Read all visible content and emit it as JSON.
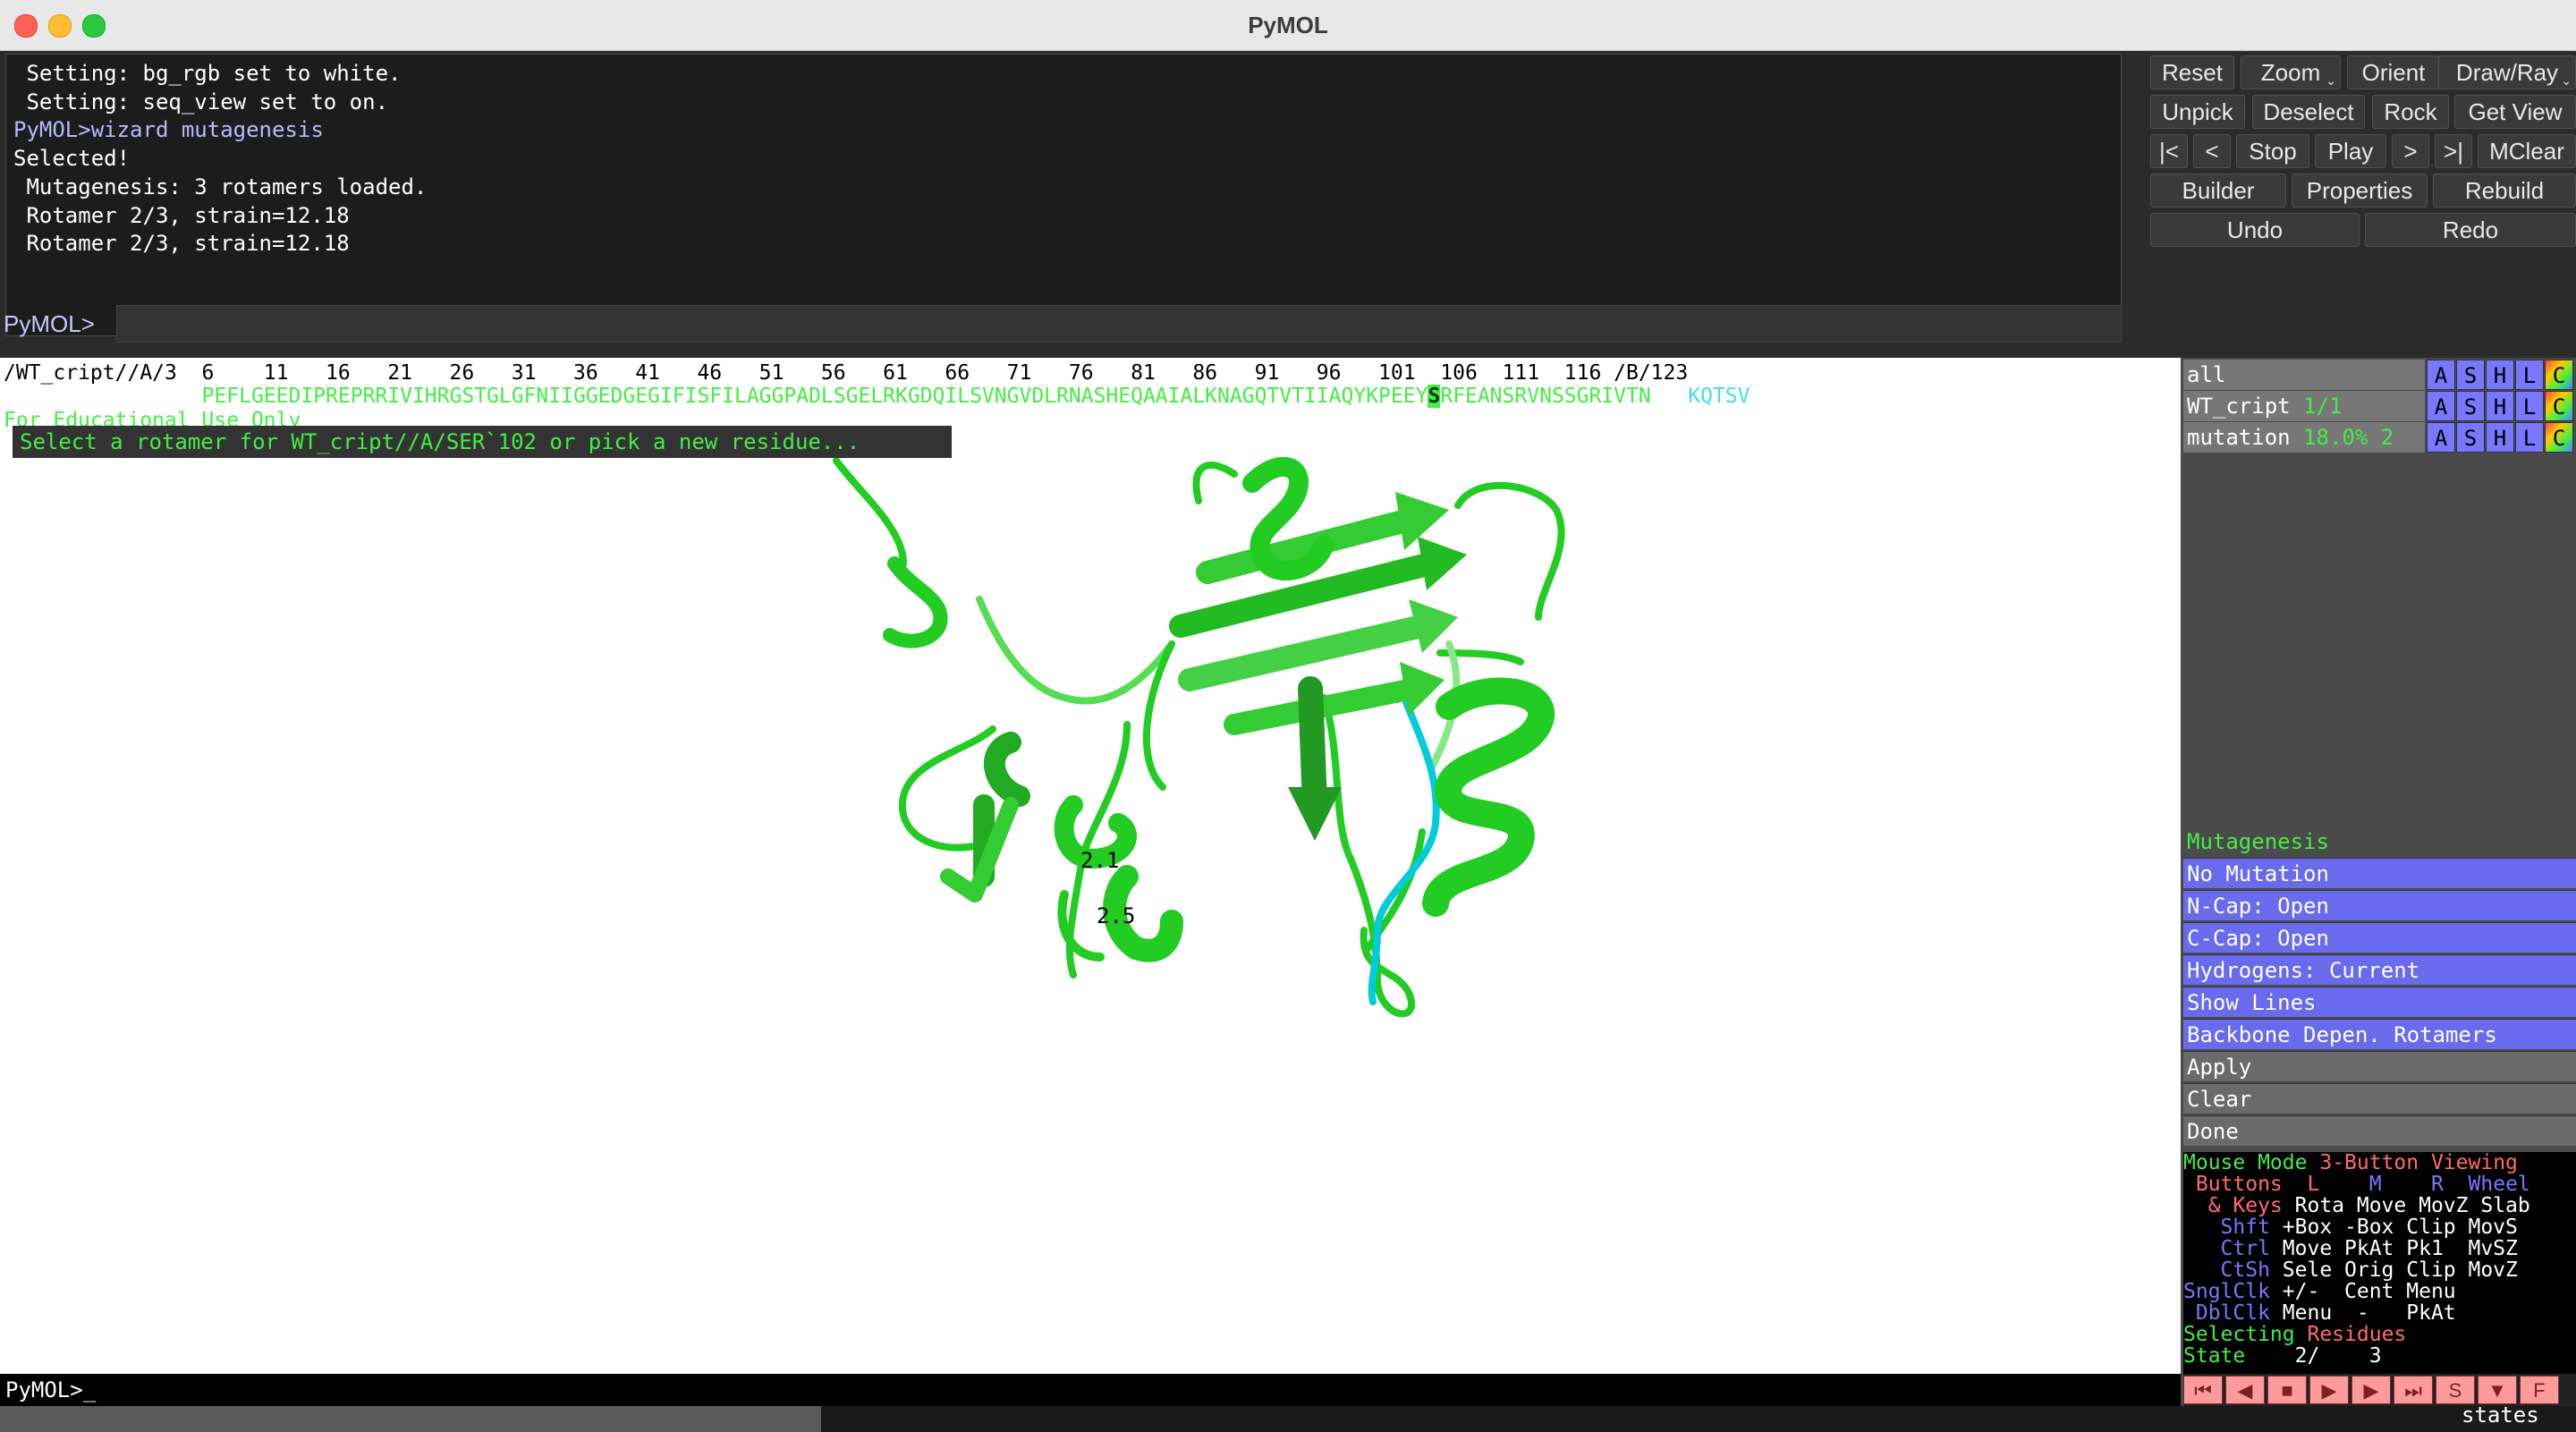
{
  "window": {
    "title": "PyMOL"
  },
  "console": {
    "lines": [
      " Setting: bg_rgb set to white.",
      " Setting: seq_view set to on.",
      "PyMOL>wizard mutagenesis",
      "Selected!",
      " Mutagenesis: 3 rotamers loaded.",
      " Rotamer 2/3, strain=12.18",
      " Rotamer 2/3, strain=12.18"
    ],
    "prompt_label": "PyMOL>"
  },
  "buttons": {
    "reset": "Reset",
    "zoom": "Zoom",
    "orient": "Orient",
    "draw_ray": "Draw/Ray",
    "unpick": "Unpick",
    "deselect": "Deselect",
    "rock": "Rock",
    "get_view": "Get View",
    "first": "|<",
    "prev": "<",
    "stop": "Stop",
    "play": "Play",
    "next": ">",
    "last": ">|",
    "mclear": "MClear",
    "builder": "Builder",
    "properties": "Properties",
    "rebuild": "Rebuild",
    "undo": "Undo",
    "redo": "Redo"
  },
  "sequence": {
    "numbers_line": "/WT_cript//A/3  6    11   16   21   26   31   36   41   46   51   56   61   66   71   76   81   86   91   96   101  106  111  116 /B/123",
    "residues_before": "                PEFLGEEDIPREPRRIVIHRGSTGLGFNIIGGEDGEGIFISFILAGGPADLSGELRKGDQILSVNGVDLRNASHEQAAIALKNAGQTVTIIAQYKPEEY",
    "selected_residue": "S",
    "residues_after": "RFEANSRVNSSGRIVTN",
    "chain_b": "   KQTSV",
    "edu_notice": "For Educational Use Only",
    "wizard_prompt": "Select a rotamer for WT_cript//A/SER`102 or pick a new residue..."
  },
  "viewer": {
    "labels": [
      "2.1",
      "2.5"
    ],
    "command_line": "PyMOL>_"
  },
  "objects": [
    {
      "name": "all",
      "subtitle": ""
    },
    {
      "name": "WT_cript",
      "subtitle": "1/1"
    },
    {
      "name": "mutation",
      "subtitle": "18.0% 2"
    }
  ],
  "object_buttons": {
    "a": "A",
    "s": "S",
    "h": "H",
    "l": "L",
    "c": "C"
  },
  "wizard": {
    "title": "Mutagenesis",
    "options": [
      "No Mutation",
      "N-Cap: Open",
      "C-Cap: Open",
      "Hydrogens: Current",
      "Show Lines",
      "Backbone Depen. Rotamers"
    ],
    "actions": [
      "Apply",
      "Clear",
      "Done"
    ]
  },
  "mouse_mode": {
    "title_a": "Mouse Mode ",
    "title_b": "3-Button Viewing",
    "buttons_hdr": " Buttons",
    "col_l": "  L",
    "col_m": "    M",
    "col_r": "    R",
    "col_w": "  Wheel",
    "keys_hdr": "  & Keys",
    "keys_row": " Rota Move MovZ Slab",
    "shft": "   Shft",
    "shft_row": " +Box -Box Clip MovS",
    "ctrl": "   Ctrl",
    "ctrl_row": " Move PkAt Pk1  MvSZ",
    "ctsh": "   CtSh",
    "ctsh_row": " Sele Orig Clip MovZ",
    "sngl": "SnglClk",
    "sngl_row": " +/-  Cent Menu",
    "dbl": " DblClk",
    "dbl_row": " Menu  -   PkAt",
    "selecting_a": "Selecting ",
    "selecting_b": "Residues",
    "state_label": "State",
    "state_value": "    2/    3"
  },
  "playbar": {
    "s_label": "S",
    "f_label": "F",
    "states_label": "states"
  },
  "colors": {
    "cartoon": "#22cc22",
    "chain_b": "#00ccdd",
    "wizard_blue": "#6a6aee",
    "text_green": "#44ee44"
  }
}
